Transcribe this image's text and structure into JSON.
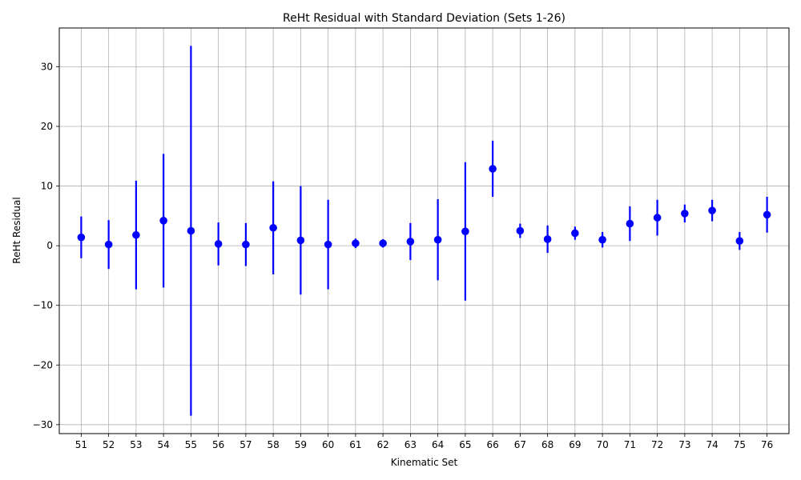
{
  "chart_data": {
    "type": "scatter",
    "title": "ReHt Residual with Standard Deviation (Sets 1-26)",
    "xlabel": "Kinematic Set",
    "ylabel": "ReHt Residual",
    "x": [
      51,
      52,
      53,
      54,
      55,
      56,
      57,
      58,
      59,
      60,
      61,
      62,
      63,
      64,
      65,
      66,
      67,
      68,
      69,
      70,
      71,
      72,
      73,
      74,
      75,
      76
    ],
    "series": [
      {
        "values": [
          1.4,
          0.2,
          1.8,
          4.2,
          2.5,
          0.3,
          0.2,
          3.0,
          0.9,
          0.2,
          0.4,
          0.4,
          0.7,
          1.0,
          2.4,
          12.9,
          2.5,
          1.1,
          2.1,
          1.0,
          3.7,
          4.7,
          5.4,
          5.9,
          0.8,
          5.2
        ],
        "errors": [
          3.5,
          4.1,
          9.1,
          11.2,
          31.0,
          3.6,
          3.6,
          7.8,
          9.1,
          7.5,
          0.8,
          0.7,
          3.1,
          6.8,
          11.6,
          4.7,
          1.2,
          2.3,
          1.1,
          1.3,
          2.9,
          3.0,
          1.5,
          1.8,
          1.5,
          3.0
        ],
        "color": "#0000ff"
      }
    ],
    "ylim": [
      -31.5,
      36.5
    ],
    "xlim": [
      50.2,
      76.8
    ],
    "yticks": [
      -30,
      -20,
      -10,
      0,
      10,
      20,
      30
    ],
    "grid": true,
    "legend": "none"
  }
}
